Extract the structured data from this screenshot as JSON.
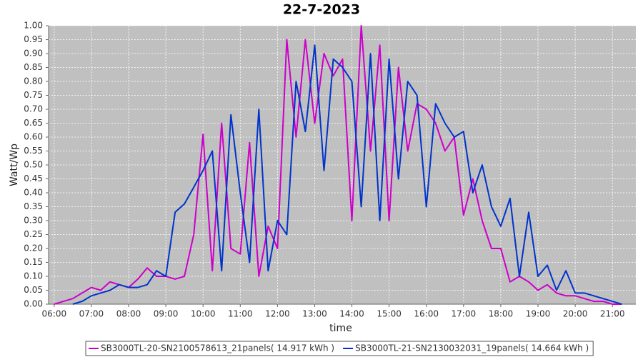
{
  "chart_data": {
    "type": "line",
    "title": "22-7-2023",
    "xlabel": "time",
    "ylabel": "Watt/Wp",
    "x": [
      6.0,
      6.25,
      6.5,
      6.75,
      7.0,
      7.25,
      7.5,
      7.75,
      8.0,
      8.25,
      8.5,
      8.75,
      9.0,
      9.25,
      9.5,
      9.75,
      10.0,
      10.25,
      10.5,
      10.75,
      11.0,
      11.25,
      11.5,
      11.75,
      12.0,
      12.25,
      12.5,
      12.75,
      13.0,
      13.25,
      13.5,
      13.75,
      14.0,
      14.25,
      14.5,
      14.75,
      15.0,
      15.25,
      15.5,
      15.75,
      16.0,
      16.25,
      16.5,
      16.75,
      17.0,
      17.25,
      17.5,
      17.75,
      18.0,
      18.25,
      18.5,
      18.75,
      19.0,
      19.25,
      19.5,
      19.75,
      20.0,
      20.25,
      20.5,
      20.75,
      21.0,
      21.25
    ],
    "series": [
      {
        "name": "SB3000TL-20-SN2100578613_21panels( 14.917 kWh )",
        "color": "#cc00cc",
        "values": [
          0.0,
          0.01,
          0.02,
          0.04,
          0.06,
          0.05,
          0.08,
          0.07,
          0.06,
          0.09,
          0.13,
          0.1,
          0.1,
          0.09,
          0.1,
          0.25,
          0.61,
          0.12,
          0.65,
          0.2,
          0.18,
          0.58,
          0.1,
          0.28,
          0.2,
          0.95,
          0.6,
          0.95,
          0.65,
          0.9,
          0.82,
          0.88,
          0.3,
          1.0,
          0.55,
          0.93,
          0.3,
          0.85,
          0.55,
          0.72,
          0.7,
          0.65,
          0.55,
          0.6,
          0.32,
          0.45,
          0.3,
          0.2,
          0.2,
          0.08,
          0.1,
          0.08,
          0.05,
          0.07,
          0.04,
          0.03,
          0.03,
          0.02,
          0.01,
          0.01,
          0.0,
          0.0
        ]
      },
      {
        "name": "SB3000TL-21-SN2130032031_19panels( 14.664 kWh )",
        "color": "#0033cc",
        "values": [
          null,
          null,
          0.0,
          0.01,
          0.03,
          0.04,
          0.05,
          0.07,
          0.06,
          0.06,
          0.07,
          0.12,
          0.1,
          0.33,
          0.36,
          0.42,
          0.48,
          0.55,
          0.12,
          0.68,
          0.4,
          0.15,
          0.7,
          0.12,
          0.3,
          0.25,
          0.8,
          0.62,
          0.93,
          0.48,
          0.88,
          0.85,
          0.8,
          0.35,
          0.9,
          0.3,
          0.88,
          0.45,
          0.8,
          0.75,
          0.35,
          0.72,
          0.65,
          0.6,
          0.62,
          0.4,
          0.5,
          0.35,
          0.28,
          0.38,
          0.1,
          0.33,
          0.1,
          0.14,
          0.05,
          0.12,
          0.04,
          0.04,
          0.03,
          0.02,
          0.01,
          0.0
        ]
      }
    ],
    "xlim": [
      5.85,
      21.63
    ],
    "xticks": [
      {
        "value": 6,
        "label": "06:00"
      },
      {
        "value": 7,
        "label": "07:00"
      },
      {
        "value": 8,
        "label": "08:00"
      },
      {
        "value": 9,
        "label": "09:00"
      },
      {
        "value": 10,
        "label": "10:00"
      },
      {
        "value": 11,
        "label": "11:00"
      },
      {
        "value": 12,
        "label": "12:00"
      },
      {
        "value": 13,
        "label": "13:00"
      },
      {
        "value": 14,
        "label": "14:00"
      },
      {
        "value": 15,
        "label": "15:00"
      },
      {
        "value": 16,
        "label": "16:00"
      },
      {
        "value": 17,
        "label": "17:00"
      },
      {
        "value": 18,
        "label": "18:00"
      },
      {
        "value": 19,
        "label": "19:00"
      },
      {
        "value": 20,
        "label": "20:00"
      },
      {
        "value": 21,
        "label": "21:00"
      }
    ],
    "ylim": [
      0,
      1
    ],
    "yticks": [
      {
        "value": 0,
        "label": "0.00"
      },
      {
        "value": 0.05,
        "label": "0.05"
      },
      {
        "value": 0.1,
        "label": "0.10"
      },
      {
        "value": 0.15,
        "label": "0.15"
      },
      {
        "value": 0.2,
        "label": "0.20"
      },
      {
        "value": 0.25,
        "label": "0.25"
      },
      {
        "value": 0.3,
        "label": "0.30"
      },
      {
        "value": 0.35,
        "label": "0.35"
      },
      {
        "value": 0.4,
        "label": "0.40"
      },
      {
        "value": 0.45,
        "label": "0.45"
      },
      {
        "value": 0.5,
        "label": "0.50"
      },
      {
        "value": 0.55,
        "label": "0.55"
      },
      {
        "value": 0.6,
        "label": "0.60"
      },
      {
        "value": 0.65,
        "label": "0.65"
      },
      {
        "value": 0.7,
        "label": "0.70"
      },
      {
        "value": 0.75,
        "label": "0.75"
      },
      {
        "value": 0.8,
        "label": "0.80"
      },
      {
        "value": 0.85,
        "label": "0.85"
      },
      {
        "value": 0.9,
        "label": "0.90"
      },
      {
        "value": 0.95,
        "label": "0.95"
      },
      {
        "value": 1,
        "label": "1.00"
      }
    ],
    "grid": true,
    "legend": "bottom"
  }
}
